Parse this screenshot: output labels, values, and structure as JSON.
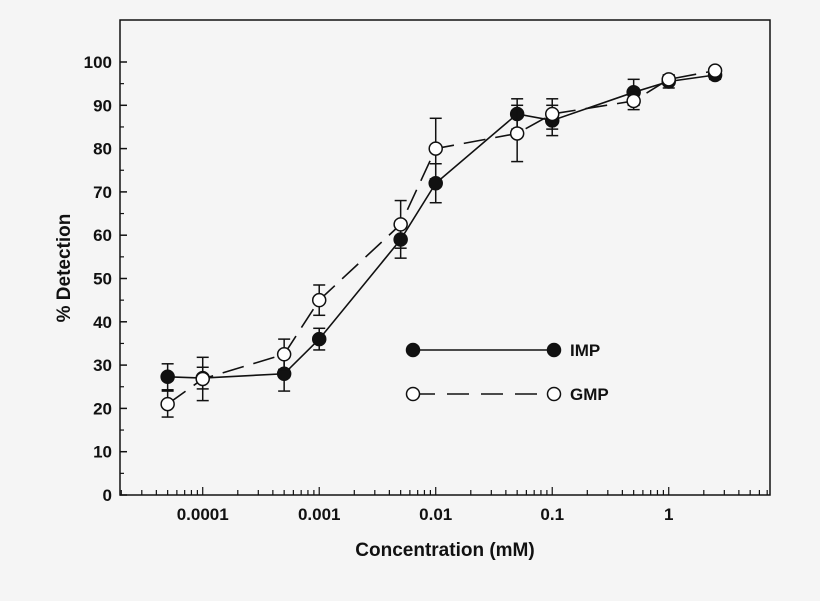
{
  "chart_data": {
    "type": "line",
    "xlabel": "Concentration (mM)",
    "ylabel": "% Detection",
    "xscale": "log",
    "xlim": [
      1.95e-05,
      7.4
    ],
    "ylim": [
      0,
      100
    ],
    "x_tick_labels": [
      "0.0001",
      "0.001",
      "0.01",
      "0.1",
      "1"
    ],
    "x_tick_values": [
      0.0001,
      0.001,
      0.01,
      0.1,
      1
    ],
    "y_ticks": [
      0,
      10,
      20,
      30,
      40,
      50,
      60,
      70,
      80,
      90,
      100
    ],
    "grid": false,
    "legend_placement": "center-right",
    "x": [
      5e-05,
      0.0001,
      0.0005,
      0.001,
      0.005,
      0.01,
      0.05,
      0.1,
      0.5,
      1,
      2.5
    ],
    "series": [
      {
        "name": "IMP",
        "marker": "filled-circle",
        "line": "solid",
        "color": "#111111",
        "values": [
          27.3,
          27,
          28,
          36,
          59,
          72,
          88,
          86.5,
          93,
          95.5,
          97
        ],
        "errors": [
          3,
          2.5,
          4,
          2.5,
          4.3,
          4.5,
          3.5,
          3.5,
          3,
          1.5,
          1
        ]
      },
      {
        "name": "GMP",
        "marker": "open-circle",
        "line": "dashed",
        "color": "#111111",
        "values": [
          21,
          26.8,
          32.5,
          45,
          62.5,
          80,
          83.5,
          88,
          91,
          96,
          98
        ],
        "errors": [
          3,
          5,
          3.5,
          3.5,
          5.5,
          7,
          6.5,
          3.5,
          2,
          1,
          0.5
        ]
      }
    ]
  }
}
